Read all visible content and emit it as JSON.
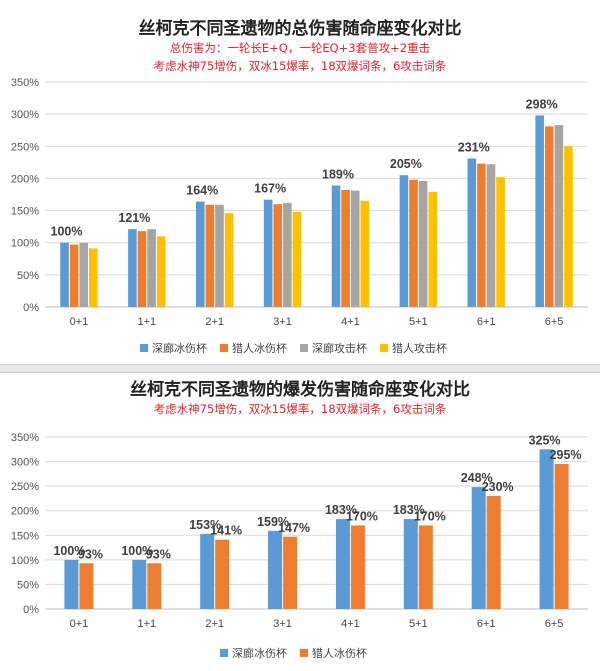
{
  "chart_data": [
    {
      "type": "bar",
      "title": "丝柯克不同圣遗物的总伤害随命座变化对比",
      "subtitle_lines": [
        "总伤害为：一轮长E+Q，一轮EQ+3套普攻+2重击",
        "考虑水神75增伤，双冰15爆率，18双爆词条，6攻击词条"
      ],
      "categories": [
        "0+1",
        "1+1",
        "2+1",
        "3+1",
        "4+1",
        "5+1",
        "6+1",
        "6+5"
      ],
      "yticks": [
        "0%",
        "50%",
        "100%",
        "150%",
        "200%",
        "250%",
        "300%",
        "350%"
      ],
      "ylim": [
        0,
        350
      ],
      "grid": true,
      "legend_position": "bottom",
      "series": [
        {
          "name": "深廊冰伤杯",
          "color": "#5b9bd5",
          "values": [
            100,
            121,
            164,
            167,
            189,
            205,
            231,
            298
          ]
        },
        {
          "name": "猎人冰伤杯",
          "color": "#ed7d31",
          "values": [
            97,
            118,
            159,
            160,
            182,
            198,
            223,
            281
          ]
        },
        {
          "name": "深廊攻击杯",
          "color": "#a5a5a5",
          "values": [
            100,
            121,
            159,
            162,
            181,
            196,
            222,
            283
          ]
        },
        {
          "name": "猎人攻击杯",
          "color": "#ffc000",
          "values": [
            91,
            110,
            146,
            148,
            165,
            179,
            202,
            250
          ]
        }
      ],
      "data_labels": [
        "100%",
        "121%",
        "164%",
        "167%",
        "189%",
        "205%",
        "231%",
        "298%"
      ]
    },
    {
      "type": "bar",
      "title": "丝柯克不同圣遗物的爆发伤害随命座变化对比",
      "subtitle_lines": [
        "考虑水神75增伤，双冰15爆率，18双爆词条，6攻击词条"
      ],
      "categories": [
        "0+1",
        "1+1",
        "2+1",
        "3+1",
        "4+1",
        "5+1",
        "6+1",
        "6+5"
      ],
      "yticks": [
        "0%",
        "50%",
        "100%",
        "150%",
        "200%",
        "250%",
        "300%",
        "350%"
      ],
      "ylim": [
        0,
        350
      ],
      "grid": true,
      "legend_position": "bottom",
      "series": [
        {
          "name": "深廊冰伤杯",
          "color": "#5b9bd5",
          "values": [
            100,
            100,
            153,
            159,
            183,
            183,
            248,
            325
          ],
          "labels": [
            "100%",
            "100%",
            "153%",
            "159%",
            "183%",
            "183%",
            "248%",
            "325%"
          ]
        },
        {
          "name": "猎人冰伤杯",
          "color": "#ed7d31",
          "values": [
            93,
            93,
            141,
            147,
            170,
            170,
            230,
            295
          ],
          "labels": [
            "93%",
            "93%",
            "141%",
            "147%",
            "170%",
            "170%",
            "230%",
            "295%"
          ]
        }
      ]
    }
  ]
}
